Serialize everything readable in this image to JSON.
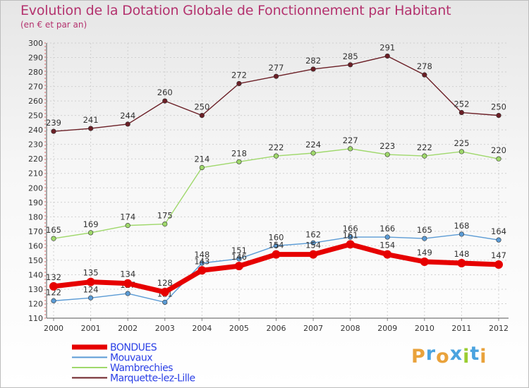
{
  "title": "Evolution de la Dotation Globale de Fonctionnement par Habitant",
  "subtitle": "(en € et par an)",
  "brand": {
    "letters": [
      "P",
      "r",
      "o",
      "x",
      "i",
      "t",
      "i"
    ],
    "colors": [
      "#e9a23b",
      "#4aa3df",
      "#e9a23b",
      "#4aa3df",
      "#9acd32",
      "#4aa3df",
      "#e9a23b"
    ]
  },
  "chart_data": {
    "type": "line",
    "title": "Evolution de la Dotation Globale de Fonctionnement par Habitant",
    "subtitle": "(en € et par an)",
    "xlabel": "",
    "ylabel": "",
    "x": [
      "2000",
      "2001",
      "2002",
      "2003",
      "2004",
      "2005",
      "2006",
      "2007",
      "2008",
      "2009",
      "2010",
      "2011",
      "2012"
    ],
    "ylim": [
      110,
      300
    ],
    "yticks": [
      110,
      120,
      130,
      140,
      150,
      160,
      170,
      180,
      190,
      200,
      210,
      220,
      230,
      240,
      250,
      260,
      270,
      280,
      290,
      300
    ],
    "grid": true,
    "legend_position": "bottom-left",
    "series": [
      {
        "name": "Marquette-lez-Lille",
        "color": "#6b1f26",
        "values": [
          239,
          241,
          244,
          260,
          250,
          272,
          277,
          282,
          285,
          291,
          278,
          252,
          250
        ]
      },
      {
        "name": "Wambrechies",
        "color": "#9fd86b",
        "values": [
          165,
          169,
          174,
          175,
          214,
          218,
          222,
          224,
          227,
          223,
          222,
          225,
          220
        ]
      },
      {
        "name": "Mouvaux",
        "color": "#5b9bd5",
        "values": [
          122,
          124,
          127,
          121,
          148,
          151,
          160,
          162,
          166,
          166,
          165,
          168,
          164
        ]
      },
      {
        "name": "BONDUES",
        "color": "#e60000",
        "values": [
          132,
          135,
          134,
          128,
          143,
          146,
          154,
          154,
          161,
          154,
          149,
          148,
          147
        ]
      }
    ],
    "legend": [
      "BONDUES",
      "Mouvaux",
      "Wambrechies",
      "Marquette-lez-Lille"
    ]
  }
}
